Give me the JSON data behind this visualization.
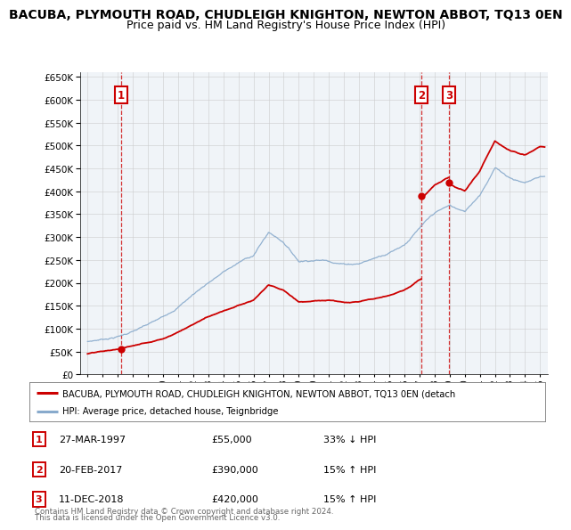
{
  "title": "BACUBA, PLYMOUTH ROAD, CHUDLEIGH KNIGHTON, NEWTON ABBOT, TQ13 0EN",
  "subtitle": "Price paid vs. HM Land Registry's House Price Index (HPI)",
  "ylim": [
    0,
    660000
  ],
  "yticks": [
    0,
    50000,
    100000,
    150000,
    200000,
    250000,
    300000,
    350000,
    400000,
    450000,
    500000,
    550000,
    600000,
    650000
  ],
  "xlim": [
    1994.5,
    2025.5
  ],
  "xticks": [
    1995,
    1996,
    1997,
    1998,
    1999,
    2000,
    2001,
    2002,
    2003,
    2004,
    2005,
    2006,
    2007,
    2008,
    2009,
    2010,
    2011,
    2012,
    2013,
    2014,
    2015,
    2016,
    2017,
    2018,
    2019,
    2020,
    2021,
    2022,
    2023,
    2024,
    2025
  ],
  "sale_color": "#cc0000",
  "hpi_color": "#88aacc",
  "sale_label": "BACUBA, PLYMOUTH ROAD, CHUDLEIGH KNIGHTON, NEWTON ABBOT, TQ13 0EN (detach",
  "hpi_label": "HPI: Average price, detached house, Teignbridge",
  "transactions": [
    {
      "num": 1,
      "date": "27-MAR-1997",
      "year": 1997.23,
      "price": 55000,
      "pct": "33% ↓ HPI"
    },
    {
      "num": 2,
      "date": "20-FEB-2017",
      "year": 2017.13,
      "price": 390000,
      "pct": "15% ↑ HPI"
    },
    {
      "num": 3,
      "date": "11-DEC-2018",
      "year": 2018.95,
      "price": 420000,
      "pct": "15% ↑ HPI"
    }
  ],
  "footer1": "Contains HM Land Registry data © Crown copyright and database right 2024.",
  "footer2": "This data is licensed under the Open Government Licence v3.0.",
  "background_color": "#ffffff",
  "grid_color": "#cccccc",
  "title_fontsize": 10,
  "subtitle_fontsize": 9
}
